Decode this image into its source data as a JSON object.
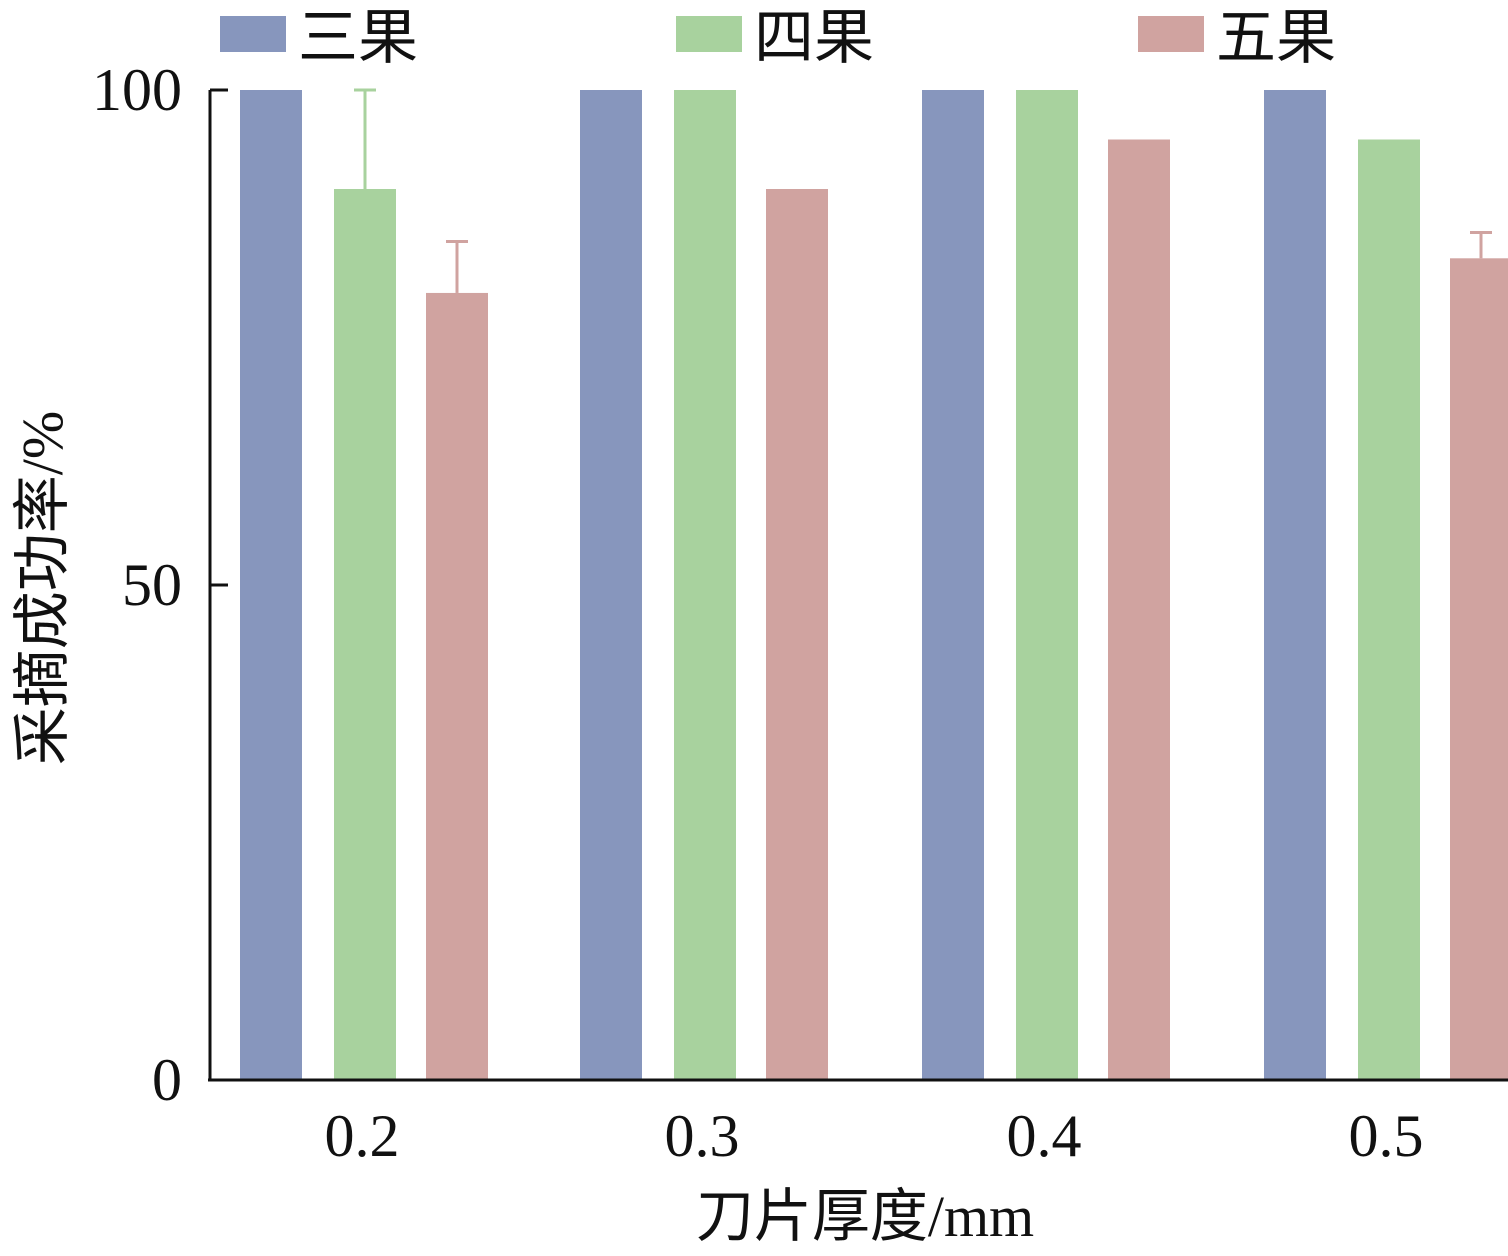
{
  "chart_data": {
    "type": "bar",
    "categories": [
      "0.2",
      "0.3",
      "0.4",
      "0.5"
    ],
    "series": [
      {
        "name": "三果",
        "color": "#8796bd",
        "values": [
          100,
          100,
          100,
          100
        ],
        "errors": [
          null,
          null,
          null,
          null
        ]
      },
      {
        "name": "四果",
        "color": "#a8d29e",
        "values": [
          90,
          100,
          100,
          95
        ],
        "errors": [
          10,
          null,
          null,
          null
        ]
      },
      {
        "name": "五果",
        "color": "#d0a3a0",
        "values": [
          79.5,
          90,
          95,
          83
        ],
        "errors": [
          5.2,
          null,
          null,
          2.6
        ]
      }
    ],
    "xlabel": "刀片厚度/mm",
    "ylabel": "采摘成功率/%",
    "ylim": [
      0,
      100
    ],
    "yticks": [
      0,
      50,
      100
    ],
    "legend_position": "top",
    "grid": false
  }
}
